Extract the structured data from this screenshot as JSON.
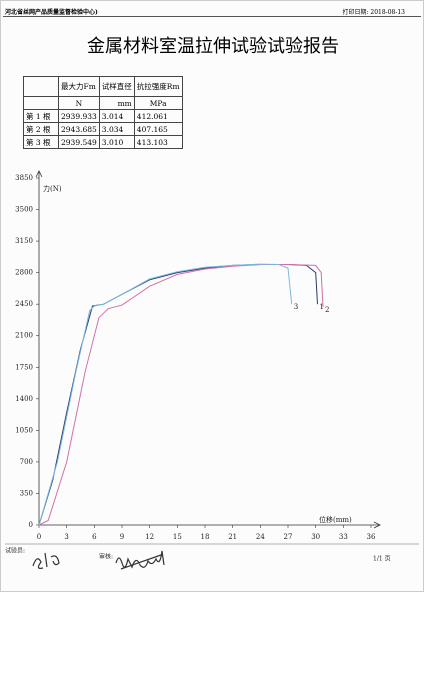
{
  "header": {
    "org": "河北省丝网产品质量监督检验中心)",
    "print_date": "打印日期: 2018-08-13"
  },
  "title": "金属材料室温拉伸试验试验报告",
  "table": {
    "columns": [
      "最大力Fm",
      "试样直径",
      "抗拉强度Rm"
    ],
    "units": [
      "N",
      "mm",
      "MPa"
    ],
    "rows": [
      [
        "第 1 根",
        "2939.933",
        "3.014",
        "412.061"
      ],
      [
        "第 2 根",
        "2943.685",
        "3.034",
        "407.165"
      ],
      [
        "第 3 根",
        "2939.549",
        "3.010",
        "413.103"
      ]
    ]
  },
  "chart_data": {
    "type": "line",
    "y_label": "力(N)",
    "x_label": "位移(mm)",
    "xlim": [
      0,
      36
    ],
    "xticks": [
      0,
      3,
      6,
      9,
      12,
      15,
      18,
      21,
      24,
      27,
      30,
      33,
      36
    ],
    "ylim": [
      0,
      3850
    ],
    "yticks": [
      0,
      350,
      700,
      1050,
      1400,
      1750,
      2100,
      2450,
      2800,
      3150,
      3500,
      3850
    ],
    "series": [
      {
        "name": "1",
        "color": "#2a3a70",
        "x": [
          0,
          1.5,
          3,
          4.5,
          5.8,
          7,
          9,
          12,
          15,
          18,
          21,
          24,
          27,
          29,
          30,
          30.2
        ],
        "y": [
          0,
          500,
          1250,
          1950,
          2430,
          2450,
          2560,
          2720,
          2800,
          2850,
          2880,
          2890,
          2890,
          2880,
          2800,
          2450
        ]
      },
      {
        "name": "2",
        "color": "#d070a8",
        "x": [
          0,
          1,
          3,
          5,
          6.5,
          7.5,
          9,
          12,
          15,
          18,
          21,
          24,
          27,
          30,
          30.6,
          30.8
        ],
        "y": [
          0,
          50,
          700,
          1700,
          2300,
          2400,
          2440,
          2650,
          2780,
          2840,
          2870,
          2890,
          2890,
          2880,
          2800,
          2420
        ]
      },
      {
        "name": "3",
        "color": "#7ab8e0",
        "x": [
          0,
          2,
          4,
          5.5,
          6,
          7,
          9,
          12,
          15,
          18,
          21,
          24,
          26,
          27,
          27.4
        ],
        "y": [
          0,
          700,
          1700,
          2380,
          2430,
          2450,
          2560,
          2730,
          2810,
          2860,
          2880,
          2895,
          2890,
          2850,
          2450
        ]
      }
    ]
  },
  "footer": {
    "tester": "试验员:",
    "reviewer": "审核:",
    "page": "1/1 页"
  }
}
